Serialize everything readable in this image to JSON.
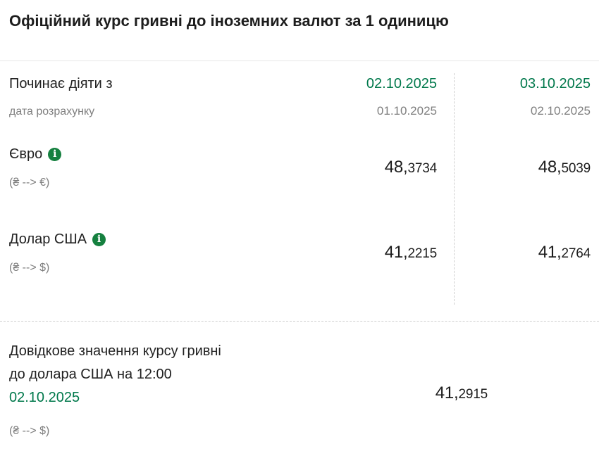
{
  "page": {
    "title": "Офіційний курс гривні до іноземних валют за 1 одиницю"
  },
  "colors": {
    "accent_green": "#00784b",
    "info_icon_green": "#15803f",
    "muted_gray": "#7f7f7f",
    "text": "#1e1e1e"
  },
  "icons": {
    "info_glyph": "i"
  },
  "table": {
    "header": {
      "label": "Починає діяти з",
      "sublabel": "дата розрахунку",
      "col1": {
        "effective_date": "02.10.2025",
        "calc_date": "01.10.2025"
      },
      "col2": {
        "effective_date": "03.10.2025",
        "calc_date": "02.10.2025"
      }
    },
    "rows": [
      {
        "name": "Євро",
        "pair": "(₴ --> €)",
        "col1": {
          "int": "48,",
          "dec": "3734"
        },
        "col2": {
          "int": "48,",
          "dec": "5039"
        }
      },
      {
        "name": "Долар США",
        "pair": "(₴ --> $)",
        "col1": {
          "int": "41,",
          "dec": "2215"
        },
        "col2": {
          "int": "41,",
          "dec": "2764"
        }
      }
    ]
  },
  "reference": {
    "title_line1": "Довідкове значення курсу гривні",
    "title_line2": "до долара США на 12:00",
    "date": "02.10.2025",
    "pair": "(₴ --> $)",
    "value": {
      "int": "41,",
      "dec": "2915"
    }
  }
}
